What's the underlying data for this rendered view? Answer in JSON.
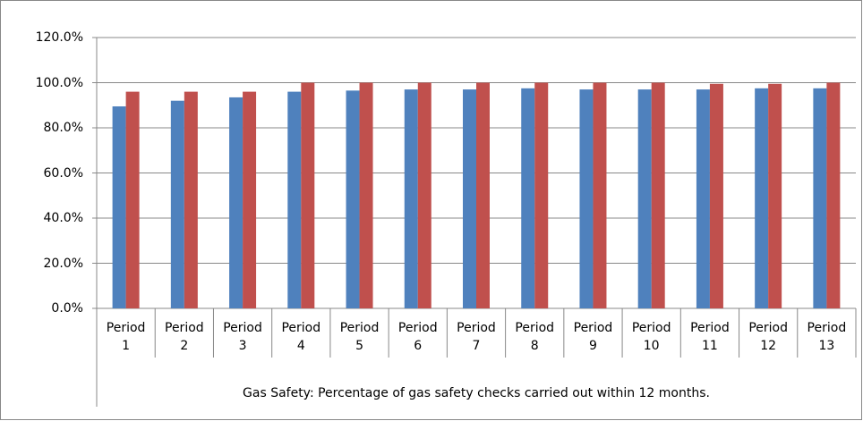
{
  "chart_data": {
    "type": "bar",
    "x_label": "Gas Safety: Percentage of gas safety checks carried out within 12 months.",
    "categories": [
      "Period 1",
      "Period 2",
      "Period 3",
      "Period 4",
      "Period 5",
      "Period 6",
      "Period 7",
      "Period 8",
      "Period 9",
      "Period 10",
      "Period 11",
      "Period 12",
      "Period 13"
    ],
    "series": [
      {
        "color": "#4f81bd",
        "values": [
          89.5,
          92,
          93.5,
          96,
          96.5,
          97,
          97,
          97.5,
          97,
          97,
          97,
          97.5,
          97.5
        ]
      },
      {
        "color": "#c0504d",
        "values": [
          96,
          96,
          96,
          100,
          100,
          100,
          100,
          100,
          100,
          100,
          99.5,
          99.5,
          100
        ]
      }
    ],
    "ylim": [
      0,
      120
    ],
    "yticks": [
      {
        "value": 0,
        "label": "0.0%"
      },
      {
        "value": 20,
        "label": "20.0%"
      },
      {
        "value": 40,
        "label": "40.0%"
      },
      {
        "value": 60,
        "label": "60.0%"
      },
      {
        "value": 80,
        "label": "80.0%"
      },
      {
        "value": 100,
        "label": "100.0%"
      },
      {
        "value": 120,
        "label": "120.0%"
      }
    ],
    "grid": true
  }
}
